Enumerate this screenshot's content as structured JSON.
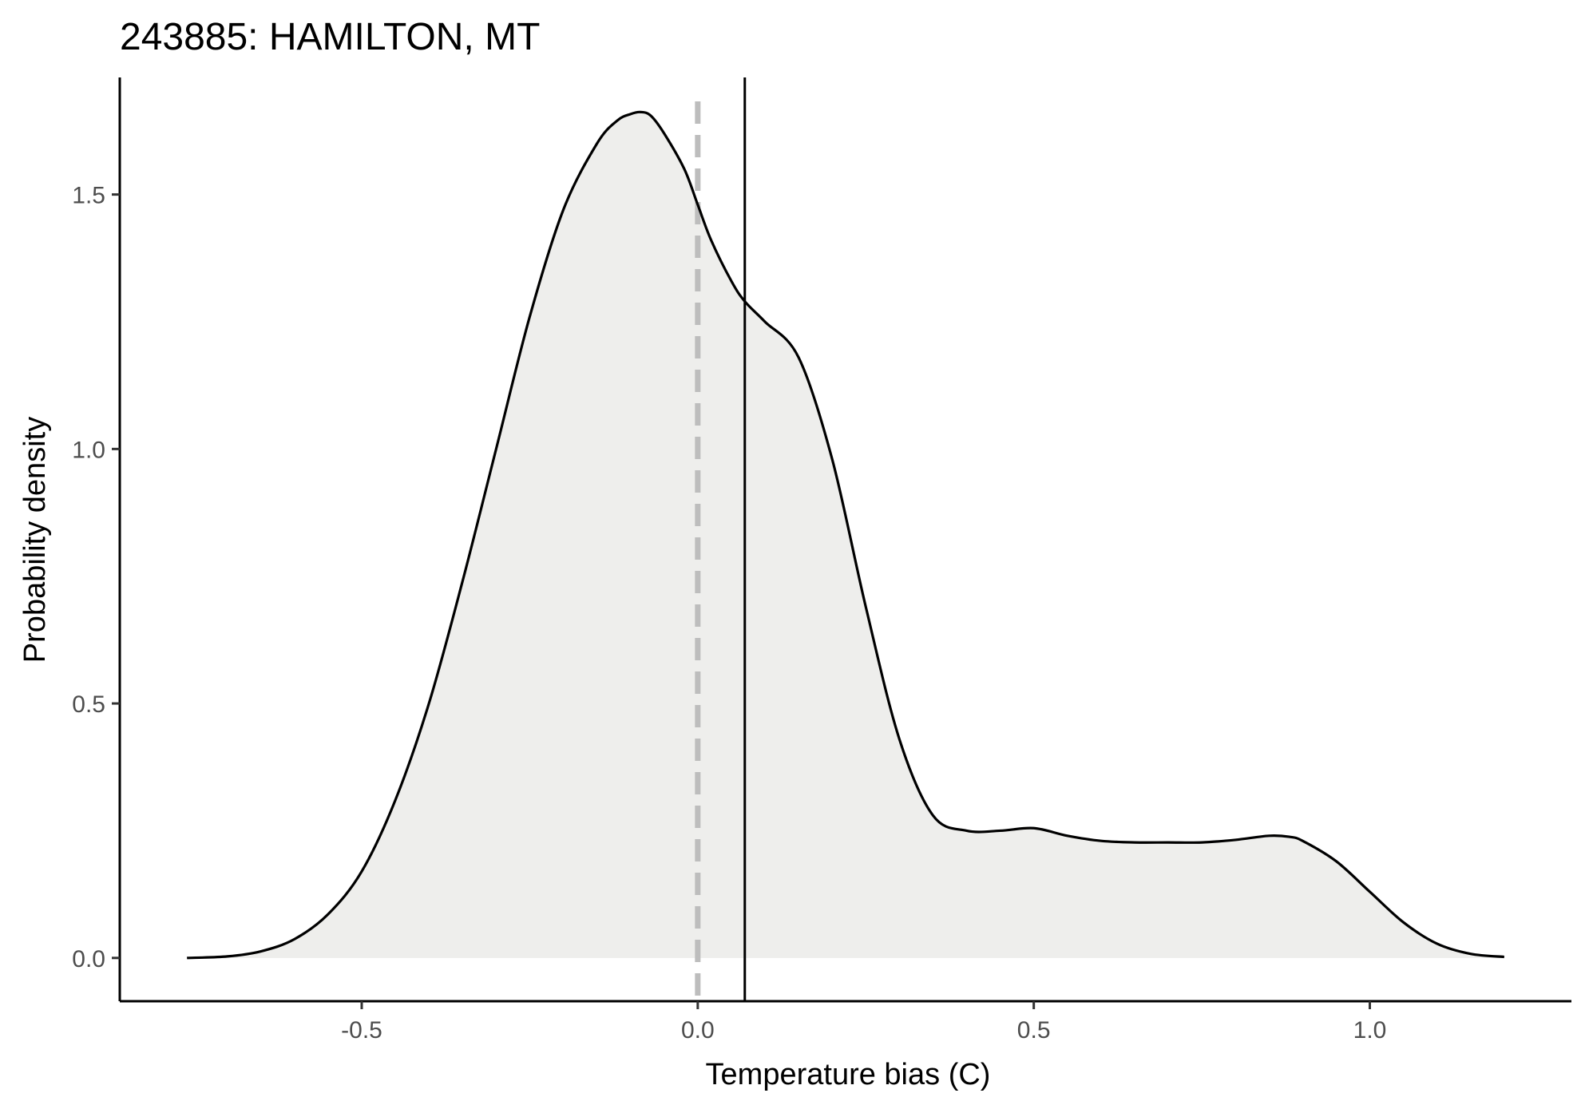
{
  "chart_data": {
    "type": "area",
    "title": "243885: HAMILTON, MT",
    "xlabel": "Temperature bias (C)",
    "ylabel": "Probability density",
    "xlim": [
      -0.86,
      1.3
    ],
    "ylim": [
      -0.085,
      1.73
    ],
    "x_ticks": [
      -0.5,
      0.0,
      0.5,
      1.0
    ],
    "x_tick_labels": [
      "-0.5",
      "0.0",
      "0.5",
      "1.0"
    ],
    "y_ticks": [
      0.0,
      0.5,
      1.0,
      1.5
    ],
    "y_tick_labels": [
      "0.0",
      "0.5",
      "1.0",
      "1.5"
    ],
    "grid": false,
    "series": [
      {
        "name": "density",
        "x": [
          -0.76,
          -0.7,
          -0.65,
          -0.6,
          -0.55,
          -0.5,
          -0.45,
          -0.4,
          -0.35,
          -0.3,
          -0.25,
          -0.2,
          -0.15,
          -0.12,
          -0.1,
          -0.085,
          -0.07,
          -0.05,
          -0.02,
          0.0,
          0.02,
          0.05,
          0.07,
          0.1,
          0.15,
          0.2,
          0.25,
          0.3,
          0.35,
          0.4,
          0.45,
          0.5,
          0.55,
          0.6,
          0.65,
          0.7,
          0.75,
          0.8,
          0.85,
          0.88,
          0.9,
          0.95,
          1.0,
          1.05,
          1.1,
          1.15,
          1.2
        ],
        "y": [
          0.0,
          0.003,
          0.013,
          0.037,
          0.086,
          0.17,
          0.31,
          0.5,
          0.74,
          1.0,
          1.26,
          1.47,
          1.6,
          1.645,
          1.658,
          1.662,
          1.655,
          1.62,
          1.55,
          1.48,
          1.41,
          1.33,
          1.29,
          1.25,
          1.18,
          0.98,
          0.69,
          0.43,
          0.28,
          0.25,
          0.25,
          0.255,
          0.24,
          0.23,
          0.227,
          0.227,
          0.227,
          0.232,
          0.24,
          0.238,
          0.23,
          0.19,
          0.13,
          0.07,
          0.028,
          0.008,
          0.002
        ],
        "line_color": "#000000",
        "fill_color": "#eeeeec"
      }
    ],
    "annotations": [
      {
        "type": "vline",
        "x": 0.0,
        "style": "dashed",
        "color": "#bdbdbd",
        "name": "zero-reference-line"
      },
      {
        "type": "vline",
        "x": 0.07,
        "style": "solid",
        "color": "#000000",
        "name": "mean-bias-line"
      }
    ]
  }
}
